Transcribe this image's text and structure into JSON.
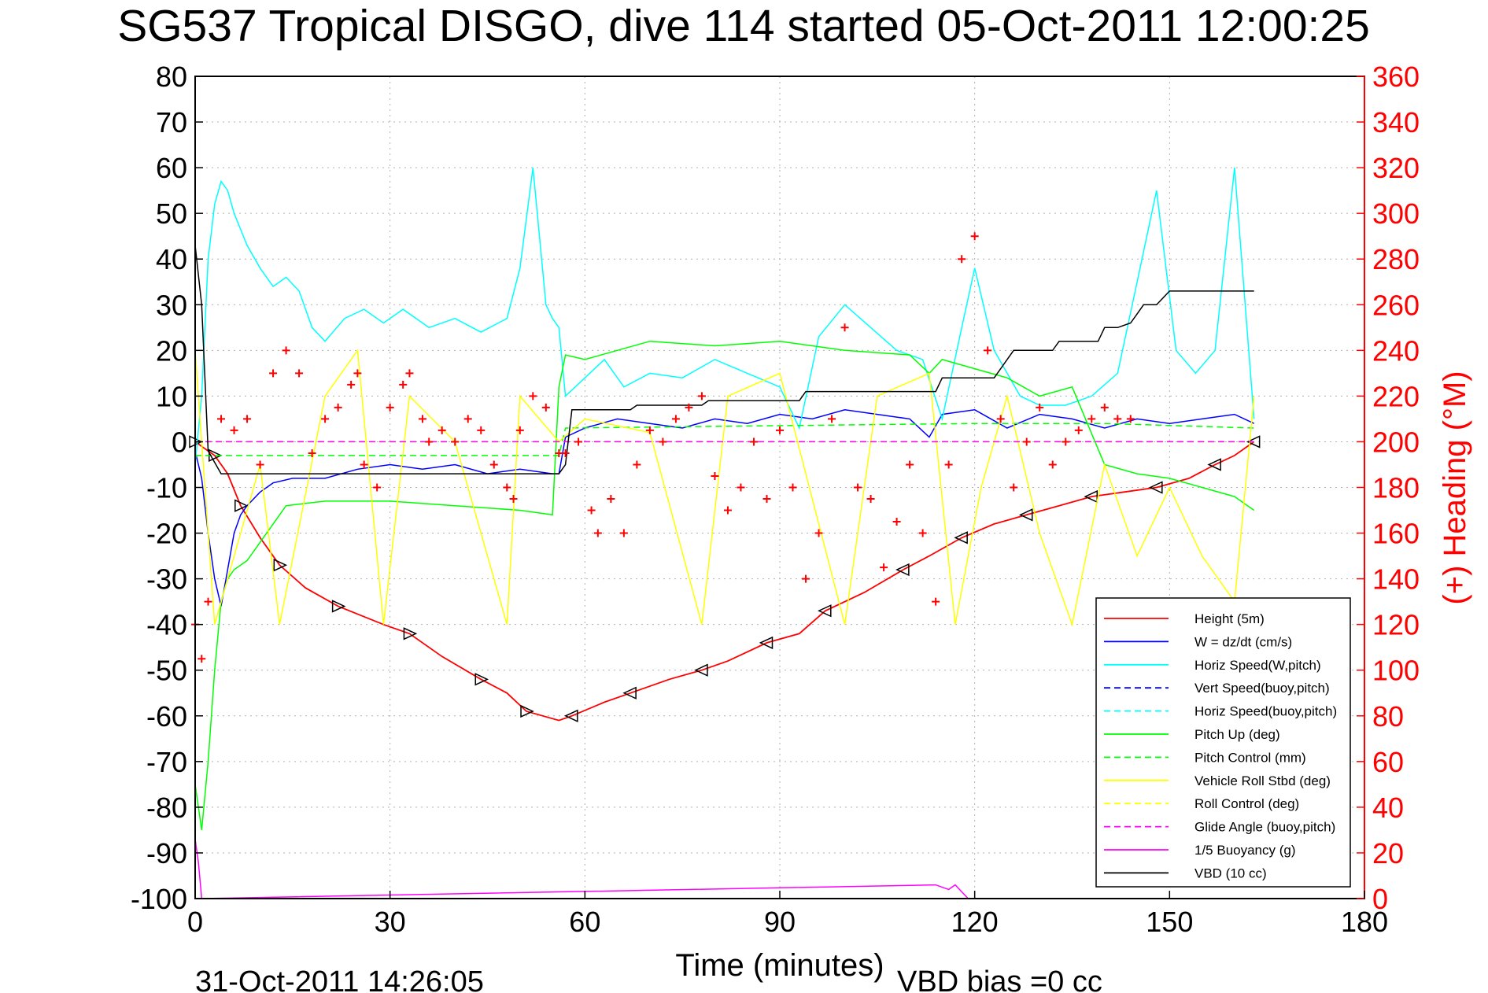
{
  "chart_data": {
    "type": "line",
    "title": "SG537 Tropical DISGO, dive 114 started 05-Oct-2011 12:00:25",
    "xlabel": "Time (minutes)",
    "ylabel": "",
    "y2label": "(+) Heading (°M)",
    "xlim": [
      0,
      180
    ],
    "ylim": [
      -100,
      80
    ],
    "y2lim": [
      0,
      360
    ],
    "xticks": [
      "0",
      "30",
      "60",
      "90",
      "120",
      "150",
      "180"
    ],
    "yticks": [
      "80",
      "70",
      "60",
      "50",
      "40",
      "30",
      "20",
      "10",
      "0",
      "-10",
      "-20",
      "-30",
      "-40",
      "-50",
      "-60",
      "-70",
      "-80",
      "-90",
      "-100"
    ],
    "y2ticks": [
      "360",
      "340",
      "320",
      "300",
      "280",
      "260",
      "240",
      "220",
      "200",
      "180",
      "160",
      "140",
      "120",
      "100",
      "80",
      "60",
      "40",
      "20",
      "0"
    ],
    "grid": true,
    "legend_position": "bottom-right",
    "footer_left": "31-Oct-2011 14:26:05",
    "footer_right": "VBD bias =0 cc",
    "colors": {
      "right_axis": "#ff0000"
    },
    "legend": [
      {
        "label": "Height (5m)",
        "color": "#ff0000",
        "style": "solid"
      },
      {
        "label": "W = dz/dt (cm/s)",
        "color": "#0000ff",
        "style": "solid"
      },
      {
        "label": "Horiz Speed(W,pitch)",
        "color": "#00ffff",
        "style": "solid"
      },
      {
        "label": "Vert Speed(buoy,pitch)",
        "color": "#0000ff",
        "style": "dashed"
      },
      {
        "label": "Horiz Speed(buoy,pitch)",
        "color": "#00ffff",
        "style": "dashed"
      },
      {
        "label": "Pitch Up (deg)",
        "color": "#00ff00",
        "style": "solid"
      },
      {
        "label": "Pitch Control (mm)",
        "color": "#00ff00",
        "style": "dashed"
      },
      {
        "label": "Vehicle Roll Stbd (deg)",
        "color": "#ffff00",
        "style": "solid"
      },
      {
        "label": "Roll Control (deg)",
        "color": "#ffff00",
        "style": "dashed"
      },
      {
        "label": "Glide Angle (buoy,pitch)",
        "color": "#ff00ff",
        "style": "dashed"
      },
      {
        "label": "1/5 Buoyancy (g)",
        "color": "#ff00ff",
        "style": "solid"
      },
      {
        "label": "VBD (10 cc)",
        "color": "#000000",
        "style": "solid"
      }
    ],
    "series": [
      {
        "name": "Height (5m)",
        "x": [
          0,
          1,
          3,
          5,
          7,
          10,
          13,
          17,
          22,
          29,
          33,
          38,
          44,
          48,
          51,
          56,
          58,
          63,
          67,
          73,
          78,
          82,
          88,
          93,
          97,
          103,
          109,
          113,
          118,
          123,
          128,
          133,
          138,
          143,
          148,
          153,
          157,
          160,
          163
        ],
        "y": [
          0,
          -1,
          -3,
          -7,
          -14,
          -21,
          -27,
          -32,
          -36,
          -40,
          -42,
          -47,
          -52,
          -55,
          -59,
          -61,
          -60,
          -57,
          -55,
          -52,
          -50,
          -48,
          -44,
          -42,
          -37,
          -33,
          -28,
          -25,
          -21,
          -18,
          -16,
          -14,
          -12,
          -11,
          -10,
          -8,
          -5,
          -3,
          0
        ]
      },
      {
        "name": "W = dz/dt (cm/s)",
        "x": [
          0,
          1,
          2,
          3,
          4,
          5,
          6,
          7,
          8,
          10,
          12,
          15,
          20,
          25,
          30,
          35,
          40,
          45,
          50,
          55,
          56,
          57,
          60,
          65,
          70,
          75,
          80,
          85,
          90,
          95,
          100,
          105,
          110,
          113,
          115,
          120,
          125,
          130,
          135,
          140,
          145,
          150,
          155,
          160,
          163
        ],
        "y": [
          -2,
          -8,
          -20,
          -30,
          -36,
          -28,
          -20,
          -16,
          -14,
          -11,
          -9,
          -8,
          -8,
          -6,
          -5,
          -6,
          -5,
          -7,
          -6,
          -7,
          -7,
          1,
          3,
          5,
          4,
          3,
          5,
          4,
          6,
          5,
          7,
          6,
          5,
          1,
          6,
          7,
          3,
          6,
          5,
          3,
          5,
          4,
          5,
          6,
          4
        ]
      },
      {
        "name": "Horiz Speed(W,pitch)",
        "x": [
          0,
          1,
          2,
          3,
          4,
          5,
          6,
          8,
          10,
          12,
          14,
          16,
          18,
          20,
          23,
          26,
          29,
          32,
          36,
          40,
          44,
          48,
          50,
          52,
          54,
          55,
          56,
          57,
          60,
          63,
          66,
          70,
          75,
          80,
          85,
          90,
          93,
          96,
          100,
          104,
          108,
          112,
          115,
          118,
          120,
          123,
          127,
          130,
          134,
          138,
          142,
          145,
          148,
          151,
          154,
          157,
          160,
          163
        ],
        "y": [
          -5,
          10,
          40,
          52,
          57,
          55,
          50,
          43,
          38,
          34,
          36,
          33,
          25,
          22,
          27,
          29,
          26,
          29,
          25,
          27,
          24,
          27,
          38,
          60,
          30,
          27,
          25,
          10,
          14,
          18,
          12,
          15,
          14,
          18,
          15,
          12,
          3,
          23,
          30,
          25,
          20,
          18,
          5,
          25,
          38,
          20,
          10,
          8,
          8,
          10,
          15,
          35,
          55,
          20,
          15,
          20,
          60,
          5
        ]
      },
      {
        "name": "Pitch Up (deg)",
        "x": [
          0,
          1,
          2,
          3,
          4,
          5,
          6,
          8,
          10,
          12,
          14,
          20,
          30,
          40,
          50,
          55,
          56,
          57,
          60,
          70,
          80,
          90,
          100,
          110,
          113,
          115,
          120,
          125,
          130,
          135,
          140,
          145,
          150,
          155,
          160,
          163
        ],
        "y": [
          -75,
          -85,
          -70,
          -50,
          -35,
          -30,
          -28,
          -26,
          -22,
          -18,
          -14,
          -13,
          -13,
          -14,
          -15,
          -16,
          12,
          19,
          18,
          22,
          21,
          22,
          20,
          19,
          15,
          18,
          16,
          14,
          10,
          12,
          -5,
          -7,
          -8,
          -10,
          -12,
          -15
        ]
      },
      {
        "name": "Pitch Control (mm)",
        "x": [
          0,
          56,
          57,
          120,
          140,
          163
        ],
        "y": [
          -3,
          -3,
          3,
          4,
          4,
          3
        ]
      },
      {
        "name": "Vehicle Roll Stbd (deg)",
        "x": [
          0,
          3,
          5,
          10,
          13,
          20,
          25,
          29,
          33,
          40,
          48,
          50,
          56,
          60,
          70,
          78,
          82,
          90,
          100,
          105,
          113,
          117,
          121,
          125,
          130,
          135,
          140,
          145,
          150,
          155,
          160,
          163
        ],
        "y": [
          20,
          -40,
          -30,
          -5,
          -40,
          10,
          20,
          -40,
          10,
          0,
          -40,
          10,
          0,
          5,
          2,
          -40,
          10,
          15,
          -40,
          10,
          15,
          -40,
          -10,
          10,
          -20,
          -40,
          -5,
          -25,
          -10,
          -25,
          -35,
          10
        ]
      },
      {
        "name": "Roll Control (deg)",
        "x": [
          0,
          30,
          60,
          90,
          120,
          150,
          163
        ],
        "y": [
          0,
          0,
          0,
          0,
          0,
          0,
          0
        ]
      },
      {
        "name": "Glide Angle (buoy,pitch)",
        "x": [
          0,
          163
        ],
        "y": [
          0,
          0
        ]
      },
      {
        "name": "1/5 Buoyancy (g)",
        "x": [
          0,
          0.5,
          1,
          114,
          116,
          117,
          119
        ],
        "y": [
          -87,
          -92,
          -100,
          -97,
          -98,
          -97,
          -100
        ]
      },
      {
        "name": "VBD (10 cc)",
        "x": [
          0,
          1,
          2,
          4,
          56,
          57,
          58,
          67,
          68,
          78,
          79,
          93,
          94,
          114,
          115,
          123,
          124,
          125,
          126,
          132,
          133,
          139,
          140,
          142,
          144,
          145,
          146,
          148,
          150,
          163
        ],
        "y": [
          43,
          30,
          -2,
          -7,
          -7,
          -5,
          7,
          7,
          8,
          8,
          9,
          9,
          11,
          11,
          14,
          14,
          16,
          18,
          20,
          20,
          22,
          22,
          25,
          25,
          26,
          28,
          30,
          30,
          33,
          33
        ]
      },
      {
        "name": "(+) Heading (°M)",
        "axis": "right",
        "x": [
          0,
          1,
          2,
          4,
          6,
          8,
          10,
          12,
          14,
          16,
          18,
          20,
          22,
          24,
          25,
          26,
          28,
          30,
          32,
          33,
          35,
          36,
          38,
          40,
          42,
          44,
          46,
          48,
          49,
          50,
          52,
          54,
          56,
          57,
          59,
          61,
          62,
          64,
          66,
          68,
          70,
          72,
          74,
          76,
          78,
          80,
          82,
          84,
          86,
          88,
          90,
          92,
          94,
          96,
          98,
          100,
          102,
          104,
          106,
          108,
          110,
          112,
          114,
          116,
          118,
          120,
          122,
          124,
          126,
          128,
          130,
          132,
          134,
          136,
          138,
          140,
          142,
          144
        ],
        "y": [
          120,
          105,
          130,
          210,
          205,
          210,
          190,
          230,
          240,
          230,
          195,
          210,
          215,
          225,
          230,
          190,
          180,
          215,
          225,
          230,
          210,
          200,
          205,
          200,
          210,
          205,
          190,
          180,
          175,
          205,
          220,
          215,
          195,
          195,
          200,
          170,
          160,
          175,
          160,
          190,
          205,
          200,
          210,
          215,
          220,
          185,
          170,
          180,
          200,
          175,
          205,
          180,
          140,
          160,
          210,
          250,
          180,
          175,
          145,
          165,
          190,
          160,
          130,
          190,
          280,
          290,
          240,
          210,
          180,
          200,
          215,
          190,
          200,
          205,
          210,
          215,
          210,
          210
        ]
      }
    ]
  }
}
